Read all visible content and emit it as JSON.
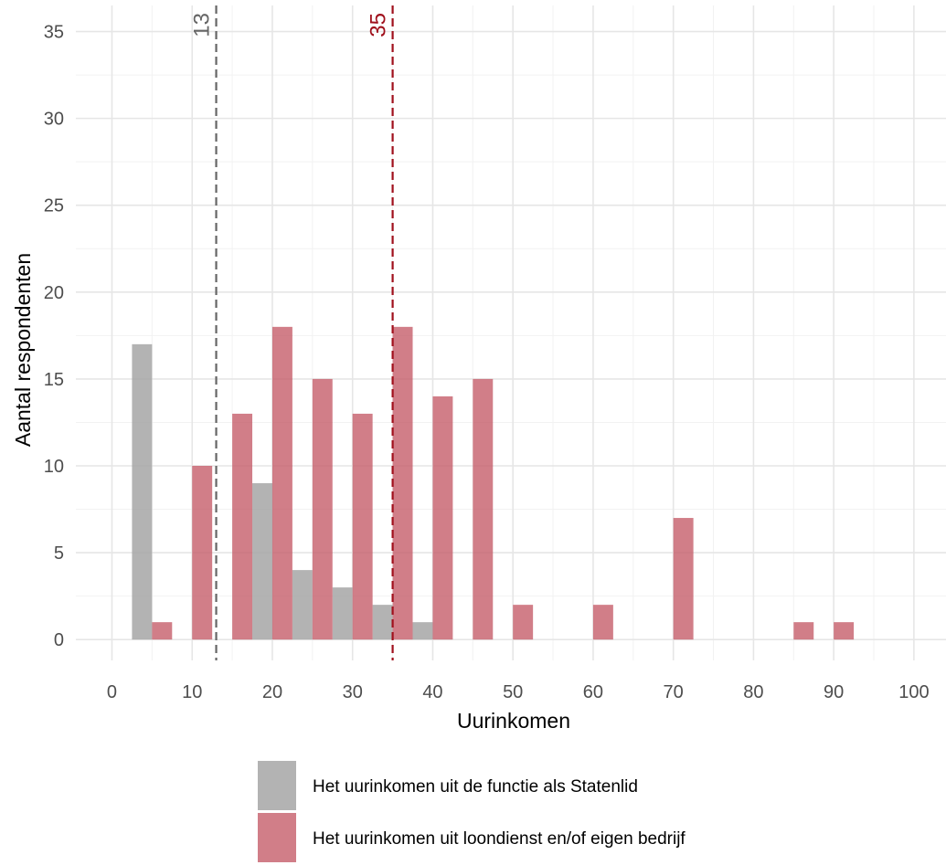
{
  "chart_data": {
    "type": "bar",
    "xlabel": "Uurinkomen",
    "ylabel": "Aantal respondenten",
    "xlim": [
      -4.5,
      104
    ],
    "ylim": [
      -1.2,
      36.5
    ],
    "x_ticks": [
      0,
      10,
      20,
      30,
      40,
      50,
      60,
      70,
      80,
      90,
      100
    ],
    "y_ticks": [
      0,
      5,
      10,
      15,
      20,
      25,
      30,
      35
    ],
    "grid": true,
    "legend_position": "bottom",
    "series": [
      {
        "name": "Het uurinkomen uit de functie als Statenlid",
        "color": "#a6a6a6",
        "x": [
          5,
          20,
          25,
          30,
          35,
          40
        ],
        "values": [
          17,
          9,
          4,
          3,
          2,
          1
        ]
      },
      {
        "name": "Het uurinkomen uit loondienst en/of eigen bedrijf",
        "color": "#c45a66",
        "x": [
          5,
          10,
          15,
          20,
          25,
          30,
          35,
          40,
          45,
          50,
          60,
          70,
          85,
          90
        ],
        "values": [
          1,
          10,
          13,
          18,
          15,
          13,
          18,
          14,
          15,
          2,
          2,
          7,
          1,
          1
        ]
      }
    ],
    "reference_lines": [
      {
        "value": 13,
        "label": "13",
        "color": "#666666"
      },
      {
        "value": 35,
        "label": "35",
        "color": "#a0101c"
      }
    ]
  }
}
